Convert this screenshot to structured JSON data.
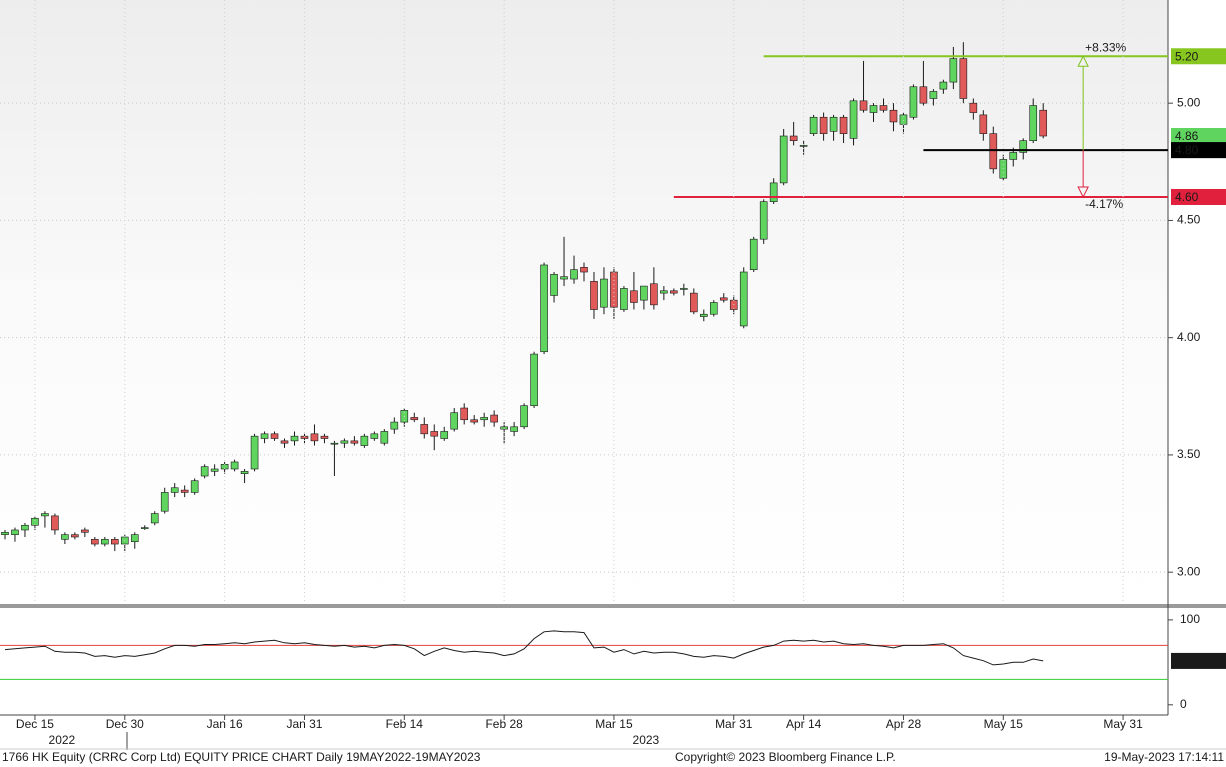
{
  "chart_data": [
    {
      "type": "candlestick",
      "up_color": "#5fd45f",
      "down_color": "#e05a5a",
      "outline": "#1a1a1a",
      "xlim": [
        -0.5,
        116.5
      ],
      "ylim": [
        2.86,
        5.44
      ],
      "yticks": [
        {
          "value": 3,
          "label": "3.00"
        },
        {
          "value": 3.5,
          "label": "3.50"
        },
        {
          "value": 4,
          "label": "4.00"
        },
        {
          "value": 4.5,
          "label": "4.50"
        },
        {
          "value": 5,
          "label": "5.00"
        }
      ],
      "grid": true,
      "open": [
        3.16,
        3.16,
        3.18,
        3.2,
        3.24,
        3.24,
        3.14,
        3.16,
        3.18,
        3.14,
        3.12,
        3.14,
        3.12,
        3.13,
        3.19,
        3.21,
        3.26,
        3.34,
        3.35,
        3.34,
        3.41,
        3.43,
        3.44,
        3.44,
        3.42,
        3.44,
        3.57,
        3.59,
        3.56,
        3.56,
        3.58,
        3.59,
        3.58,
        3.55,
        3.55,
        3.56,
        3.54,
        3.57,
        3.55,
        3.61,
        3.64,
        3.66,
        3.63,
        3.6,
        3.57,
        3.61,
        3.7,
        3.65,
        3.65,
        3.67,
        3.61,
        3.6,
        3.62,
        3.71,
        3.94,
        4.18,
        4.25,
        4.25,
        4.3,
        4.24,
        4.13,
        4.28,
        4.12,
        4.2,
        4.16,
        4.23,
        4.19,
        4.2,
        4.21,
        4.19,
        4.09,
        4.1,
        4.17,
        4.16,
        4.05,
        4.29,
        4.42,
        4.58,
        4.66,
        4.86,
        4.82,
        4.87,
        4.94,
        4.88,
        4.94,
        4.85,
        5.01,
        4.96,
        4.99,
        4.97,
        4.91,
        4.94,
        5.07,
        5.02,
        5.06,
        5.09,
        5.19,
        5.0,
        4.95,
        4.87,
        4.68,
        4.76,
        4.79,
        4.84,
        4.97
      ],
      "high": [
        3.18,
        3.19,
        3.21,
        3.24,
        3.26,
        3.25,
        3.17,
        3.17,
        3.19,
        3.15,
        3.15,
        3.15,
        3.16,
        3.17,
        3.2,
        3.26,
        3.36,
        3.38,
        3.37,
        3.4,
        3.46,
        3.46,
        3.47,
        3.48,
        3.44,
        3.59,
        3.6,
        3.6,
        3.57,
        3.6,
        3.59,
        3.63,
        3.59,
        3.56,
        3.57,
        3.58,
        3.59,
        3.6,
        3.61,
        3.66,
        3.7,
        3.68,
        3.66,
        3.63,
        3.62,
        3.7,
        3.72,
        3.67,
        3.68,
        3.69,
        3.64,
        3.64,
        3.72,
        3.94,
        4.32,
        4.28,
        4.43,
        4.35,
        4.32,
        4.28,
        4.3,
        4.3,
        4.22,
        4.28,
        4.22,
        4.3,
        4.22,
        4.21,
        4.23,
        4.21,
        4.12,
        4.16,
        4.19,
        4.18,
        4.3,
        4.43,
        4.59,
        4.68,
        4.89,
        4.92,
        4.84,
        4.95,
        4.96,
        4.95,
        4.95,
        5.02,
        5.18,
        5.0,
        5.02,
        5.0,
        4.96,
        5.08,
        5.18,
        5.06,
        5.1,
        5.24,
        5.26,
        5.02,
        4.97,
        4.9,
        4.78,
        4.81,
        4.85,
        5.02,
        5.0
      ],
      "low": [
        3.14,
        3.13,
        3.15,
        3.18,
        3.19,
        3.16,
        3.12,
        3.14,
        3.15,
        3.11,
        3.11,
        3.09,
        3.09,
        3.1,
        3.18,
        3.2,
        3.25,
        3.32,
        3.32,
        3.33,
        3.4,
        3.41,
        3.42,
        3.43,
        3.38,
        3.43,
        3.55,
        3.56,
        3.53,
        3.54,
        3.55,
        3.54,
        3.55,
        3.41,
        3.53,
        3.54,
        3.53,
        3.56,
        3.54,
        3.59,
        3.62,
        3.64,
        3.57,
        3.52,
        3.56,
        3.6,
        3.63,
        3.63,
        3.62,
        3.62,
        3.55,
        3.58,
        3.61,
        3.7,
        3.93,
        4.15,
        4.22,
        4.23,
        4.24,
        4.08,
        4.1,
        4.08,
        4.11,
        4.12,
        4.12,
        4.12,
        4.16,
        4.18,
        4.18,
        4.1,
        4.07,
        4.09,
        4.15,
        4.1,
        4.04,
        4.28,
        4.4,
        4.57,
        4.65,
        4.82,
        4.78,
        4.86,
        4.84,
        4.84,
        4.83,
        4.82,
        4.96,
        4.92,
        4.96,
        4.88,
        4.87,
        4.93,
        4.99,
        4.99,
        5.04,
        5.06,
        5.0,
        4.93,
        4.84,
        4.7,
        4.67,
        4.73,
        4.76,
        4.83,
        4.85
      ],
      "close": [
        3.17,
        3.18,
        3.2,
        3.23,
        3.25,
        3.18,
        3.16,
        3.15,
        3.17,
        3.12,
        3.14,
        3.12,
        3.15,
        3.16,
        3.19,
        3.25,
        3.34,
        3.36,
        3.34,
        3.39,
        3.45,
        3.44,
        3.46,
        3.47,
        3.43,
        3.58,
        3.59,
        3.57,
        3.55,
        3.58,
        3.57,
        3.56,
        3.57,
        3.55,
        3.56,
        3.55,
        3.58,
        3.59,
        3.6,
        3.64,
        3.69,
        3.65,
        3.59,
        3.58,
        3.6,
        3.68,
        3.65,
        3.64,
        3.66,
        3.64,
        3.62,
        3.62,
        3.71,
        3.93,
        4.31,
        4.27,
        4.26,
        4.29,
        4.28,
        4.12,
        4.25,
        4.13,
        4.21,
        4.15,
        4.22,
        4.14,
        4.2,
        4.19,
        4.21,
        4.11,
        4.1,
        4.15,
        4.16,
        4.12,
        4.28,
        4.42,
        4.58,
        4.66,
        4.86,
        4.84,
        4.82,
        4.94,
        4.87,
        4.94,
        4.87,
        5.01,
        4.97,
        4.99,
        4.97,
        4.92,
        4.95,
        5.07,
        5.0,
        5.05,
        5.09,
        5.19,
        5.02,
        4.96,
        4.87,
        4.72,
        4.76,
        4.79,
        4.84,
        4.99,
        4.86
      ],
      "levels": [
        {
          "value": 5.2,
          "label": "5.20",
          "color": "#86c61e",
          "text_color": "#000000",
          "x_start": 76
        },
        {
          "value": 4.8,
          "label": "4.80",
          "color": "#000000",
          "text_color": "#ffffff",
          "x_start": 92
        },
        {
          "value": 4.6,
          "label": "4.60",
          "color": "#e0203c",
          "text_color": "#ffffff",
          "x_start": 67
        }
      ],
      "arrow_x": 108,
      "annotations": [
        {
          "text": "+8.33%",
          "color": "#7dc21e"
        },
        {
          "text": "-4.17%",
          "color": "#e0203c"
        }
      ],
      "last_tag_color": "#5fd45f"
    },
    {
      "type": "line",
      "color": "#1a1a1a",
      "xlim": [
        -0.5,
        116.5
      ],
      "ylim": [
        -12,
        114
      ],
      "yticks": [
        0,
        100
      ],
      "values": [
        65,
        66,
        67,
        68,
        69,
        63,
        62,
        62,
        61,
        57,
        58,
        56,
        58,
        57,
        59,
        61,
        66,
        70,
        70,
        69,
        71,
        71,
        72,
        73,
        72,
        74,
        75,
        76,
        73,
        72,
        73,
        71,
        70,
        69,
        70,
        68,
        69,
        67,
        70,
        71,
        70,
        66,
        58,
        63,
        67,
        64,
        62,
        63,
        62,
        61,
        58,
        60,
        66,
        78,
        86,
        87,
        86,
        86,
        85,
        67,
        68,
        62,
        65,
        60,
        63,
        61,
        62,
        62,
        60,
        57,
        56,
        58,
        57,
        55,
        60,
        64,
        68,
        70,
        75,
        76,
        75,
        76,
        74,
        75,
        72,
        71,
        72,
        70,
        69,
        67,
        70,
        70,
        70,
        71,
        72,
        67,
        58,
        55,
        52,
        47,
        48,
        50,
        50,
        54,
        51.6778
      ],
      "levels": [
        {
          "value": 70,
          "color": "#e04040"
        },
        {
          "value": 30,
          "color": "#33cc33"
        }
      ],
      "tag_color": "#1a1a1a",
      "xticks": [
        {
          "value": 3,
          "label": "Dec 15"
        },
        {
          "value": 12,
          "label": "Dec 30"
        },
        {
          "value": 22,
          "label": "Jan 16"
        },
        {
          "value": 30,
          "label": "Jan 31"
        },
        {
          "value": 40,
          "label": "Feb 14"
        },
        {
          "value": 50,
          "label": "Feb 28"
        },
        {
          "value": 61,
          "label": "Mar 15"
        },
        {
          "value": 73,
          "label": "Mar 31"
        },
        {
          "value": 80,
          "label": "Apr 14"
        },
        {
          "value": 90,
          "label": "Apr 28"
        },
        {
          "value": 100,
          "label": "May 15"
        },
        {
          "value": 112,
          "label": "May 31"
        }
      ],
      "year_labels": [
        {
          "value": 5.7,
          "label": "2022"
        },
        {
          "value": 64.2,
          "label": "2023"
        }
      ]
    }
  ],
  "footer": {
    "left": "1766 HK Equity (CRRC Corp Ltd) EQUITY PRICE CHART  Daily 19MAY2022-19MAY2023",
    "center": "Copyright© 2023 Bloomberg Finance L.P.",
    "right": "19-May-2023 17:14:11"
  }
}
